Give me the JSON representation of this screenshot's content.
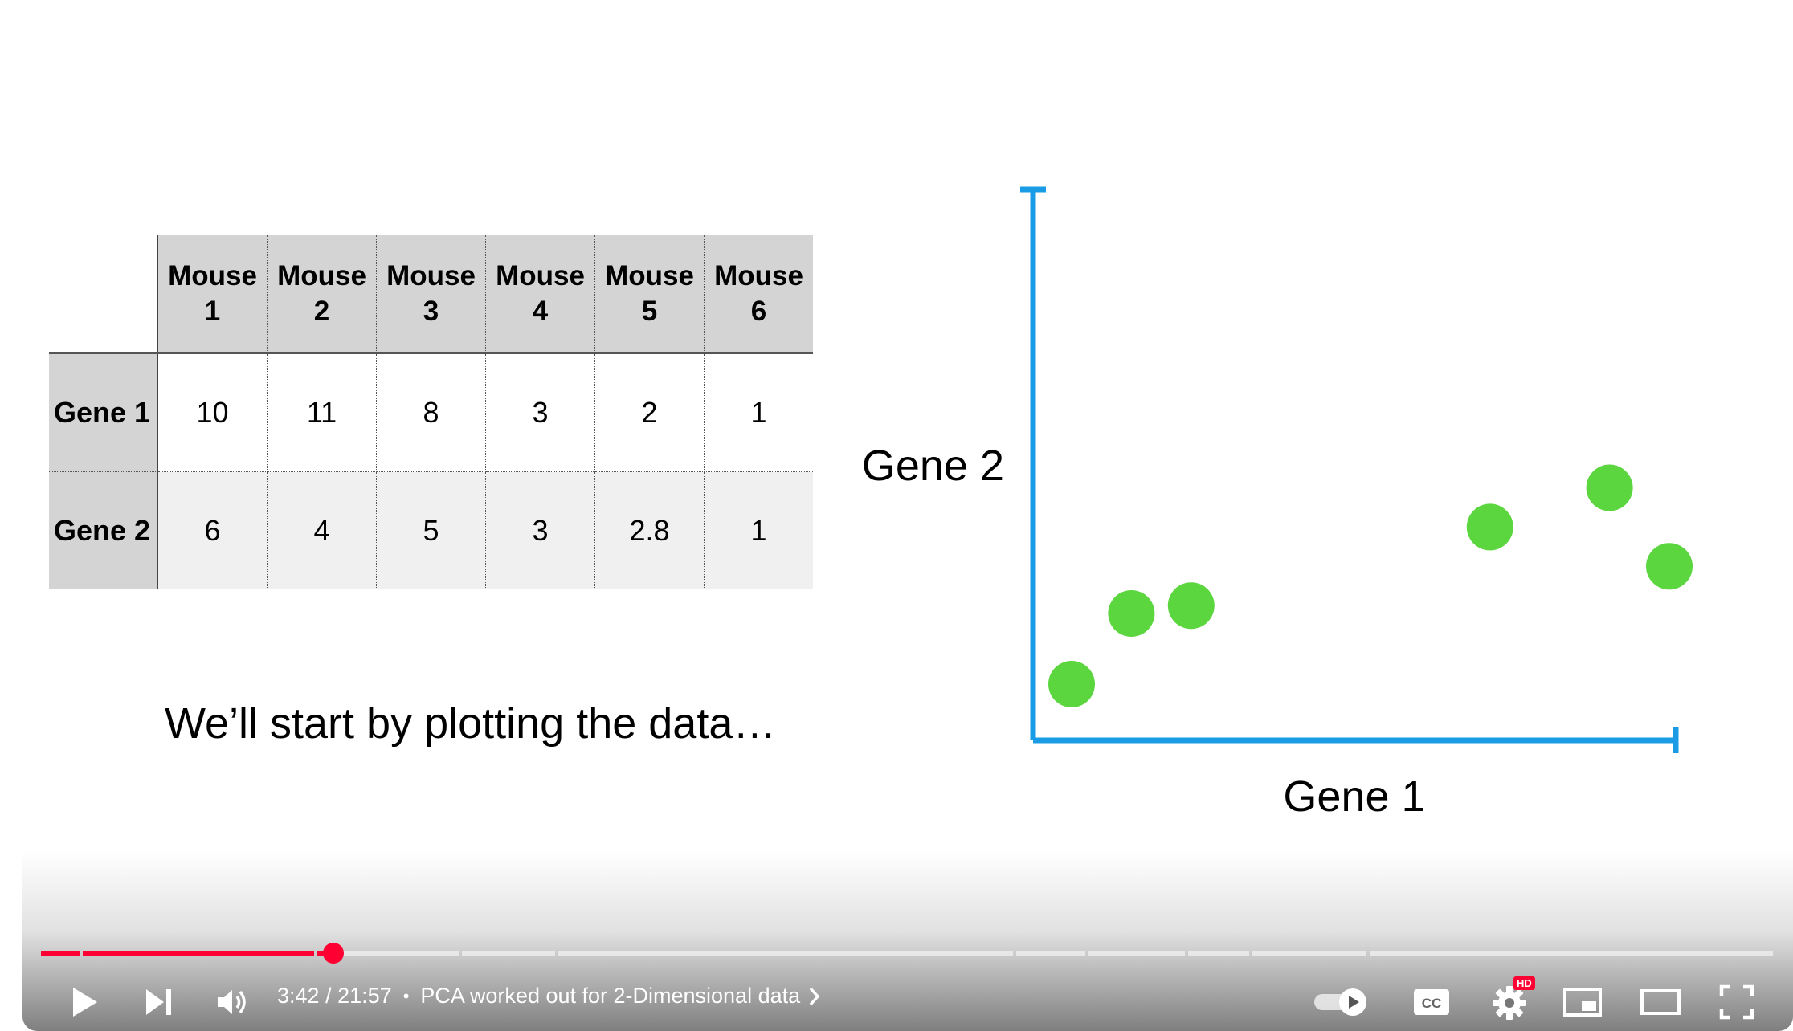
{
  "table": {
    "columns": [
      "Mouse\n1",
      "Mouse\n2",
      "Mouse\n3",
      "Mouse\n4",
      "Mouse\n5",
      "Mouse\n6"
    ],
    "column_lines": [
      [
        "Mouse",
        "1"
      ],
      [
        "Mouse",
        "2"
      ],
      [
        "Mouse",
        "3"
      ],
      [
        "Mouse",
        "4"
      ],
      [
        "Mouse",
        "5"
      ],
      [
        "Mouse",
        "6"
      ]
    ],
    "rows": [
      {
        "label": "Gene 1",
        "values": [
          "10",
          "11",
          "8",
          "3",
          "2",
          "1"
        ]
      },
      {
        "label": "Gene 2",
        "values": [
          "6",
          "4",
          "5",
          "3",
          "2.8",
          "1"
        ]
      }
    ]
  },
  "caption": "We’ll start by plotting the data…",
  "chart_data": {
    "type": "scatter",
    "xlabel": "Gene 1",
    "ylabel": "Gene 2",
    "xlim": [
      0,
      12
    ],
    "ylim": [
      0,
      12
    ],
    "points": [
      {
        "x": 10,
        "y": 6
      },
      {
        "x": 11,
        "y": 4
      },
      {
        "x": 8,
        "y": 5
      },
      {
        "x": 3,
        "y": 3
      },
      {
        "x": 2,
        "y": 2.8
      },
      {
        "x": 1,
        "y": 1
      }
    ],
    "point_color": "#5bd63f",
    "axis_color": "#1a9be6"
  },
  "player": {
    "current_time": "3:42",
    "separator": "/",
    "duration": "21:57",
    "progress_fraction": 0.169,
    "chapter_bullet": "•",
    "chapter_title": "PCA worked out for 2-Dimensional data",
    "hd_badge": "HD",
    "accent_color": "#ff0033",
    "icons": {
      "play": "play-icon",
      "next": "next-icon",
      "volume": "volume-icon",
      "autoplay": "autoplay-toggle-icon",
      "captions": "captions-icon",
      "settings": "gear-icon",
      "miniplayer": "miniplayer-icon",
      "theater": "theater-mode-icon",
      "fullscreen": "fullscreen-icon"
    }
  }
}
